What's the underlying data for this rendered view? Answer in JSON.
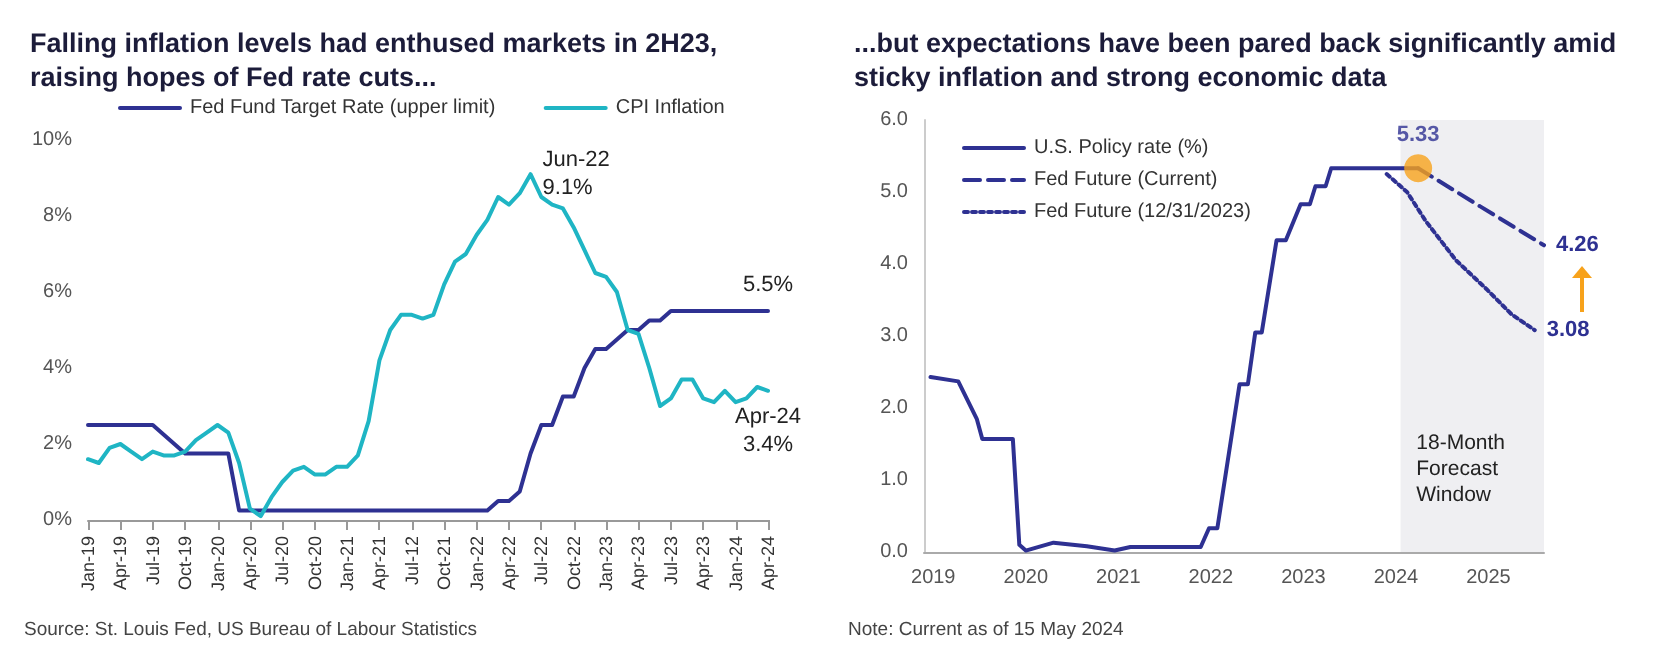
{
  "chart_data": [
    {
      "type": "line",
      "title": "Falling inflation levels had enthused markets in 2H23, raising hopes of Fed rate cuts...",
      "categories": [
        "Jan-19",
        null,
        null,
        "Apr-19",
        null,
        null,
        "Jul-19",
        null,
        null,
        "Oct-19",
        null,
        null,
        "Jan-20",
        null,
        null,
        "Apr-20",
        null,
        null,
        "Jul-20",
        null,
        null,
        "Oct-20",
        null,
        null,
        "Jan-21",
        null,
        null,
        "Apr-21",
        null,
        null,
        "Jul-12",
        null,
        null,
        "Oct-21",
        null,
        null,
        "Jan-22",
        null,
        null,
        "Apr-22",
        null,
        null,
        "Jul-22",
        null,
        null,
        "Oct-22",
        null,
        null,
        "Jan-23",
        null,
        null,
        "Apr-23",
        null,
        null,
        "Jul-23",
        null,
        null,
        "Apr-23",
        null,
        null,
        "Jan-24",
        null,
        null,
        "Apr-24"
      ],
      "series": [
        {
          "name": "Fed Fund Target Rate (upper limit)",
          "color": "#2e3192",
          "values": [
            2.5,
            2.5,
            2.5,
            2.5,
            2.5,
            2.5,
            2.5,
            2.25,
            2.0,
            1.75,
            1.75,
            1.75,
            1.75,
            1.75,
            0.25,
            0.25,
            0.25,
            0.25,
            0.25,
            0.25,
            0.25,
            0.25,
            0.25,
            0.25,
            0.25,
            0.25,
            0.25,
            0.25,
            0.25,
            0.25,
            0.25,
            0.25,
            0.25,
            0.25,
            0.25,
            0.25,
            0.25,
            0.25,
            0.5,
            0.5,
            0.75,
            1.75,
            2.5,
            2.5,
            3.25,
            3.25,
            4.0,
            4.5,
            4.5,
            4.75,
            5.0,
            5.0,
            5.25,
            5.25,
            5.5,
            5.5,
            5.5,
            5.5,
            5.5,
            5.5,
            5.5,
            5.5,
            5.5,
            5.5
          ],
          "value_labels": [
            null,
            null,
            null,
            null,
            null,
            null,
            null,
            null,
            null,
            null,
            null,
            null,
            null,
            null,
            null,
            null,
            null,
            null,
            null,
            null,
            null,
            null,
            null,
            null,
            null,
            null,
            null,
            null,
            null,
            null,
            null,
            null,
            null,
            null,
            null,
            null,
            null,
            null,
            null,
            null,
            null,
            null,
            null,
            null,
            null,
            null,
            null,
            null,
            null,
            null,
            null,
            null,
            null,
            null,
            null,
            null,
            null,
            null,
            null,
            null,
            null,
            null,
            null,
            "5.5%"
          ]
        },
        {
          "name": "CPI Inflation",
          "color": "#1fb5c4",
          "values": [
            1.6,
            1.5,
            1.9,
            2.0,
            1.8,
            1.6,
            1.8,
            1.7,
            1.7,
            1.8,
            2.1,
            2.3,
            2.5,
            2.3,
            1.5,
            0.3,
            0.1,
            0.6,
            1.0,
            1.3,
            1.4,
            1.2,
            1.2,
            1.4,
            1.4,
            1.7,
            2.6,
            4.2,
            5.0,
            5.4,
            5.4,
            5.3,
            5.4,
            6.2,
            6.8,
            7.0,
            7.5,
            7.9,
            8.5,
            8.3,
            8.6,
            9.1,
            8.5,
            8.3,
            8.2,
            7.7,
            7.1,
            6.5,
            6.4,
            6.0,
            5.0,
            4.9,
            4.0,
            3.0,
            3.2,
            3.7,
            3.7,
            3.2,
            3.1,
            3.4,
            3.1,
            3.2,
            3.5,
            3.4
          ],
          "value_labels": [
            null,
            null,
            null,
            null,
            null,
            null,
            null,
            null,
            null,
            null,
            null,
            null,
            null,
            null,
            null,
            null,
            null,
            null,
            null,
            null,
            null,
            null,
            null,
            null,
            null,
            null,
            null,
            null,
            null,
            null,
            null,
            null,
            null,
            null,
            null,
            null,
            null,
            null,
            null,
            null,
            null,
            "Jun-22\n9.1%",
            null,
            null,
            null,
            null,
            null,
            null,
            null,
            null,
            null,
            null,
            null,
            null,
            null,
            null,
            null,
            null,
            null,
            null,
            null,
            null,
            null,
            "Apr-24\n3.4%"
          ]
        }
      ],
      "ylim": [
        0,
        10
      ],
      "yticks": [
        {
          "value": 0,
          "label": "0%"
        },
        {
          "value": 2,
          "label": "2%"
        },
        {
          "value": 4,
          "label": "4%"
        },
        {
          "value": 6,
          "label": "6%"
        },
        {
          "value": 8,
          "label": "8%"
        },
        {
          "value": 10,
          "label": "10%"
        }
      ],
      "grid": false,
      "legend": "top",
      "marker": "none",
      "line_style": "solid",
      "annotations": [
        "Source: St. Louis Fed, US Bureau of Labour Statistics"
      ]
    },
    {
      "type": "line",
      "title": "...but expectations have been pared back significantly amid sticky inflation and strong economic data",
      "series": [
        {
          "name": "U.S. Policy rate (%)",
          "color": "#2e3192",
          "line_style": "solid",
          "x": [
            2018.97,
            2019.27,
            2019.47,
            2019.53,
            2019.86,
            2019.93,
            2020.0,
            2020.3,
            2020.66,
            2020.96,
            2021.13,
            2021.89,
            2021.98,
            2022.07,
            2022.31,
            2022.4,
            2022.48,
            2022.55,
            2022.71,
            2022.81,
            2022.97,
            2023.07,
            2023.13,
            2023.24,
            2023.3,
            2024.24
          ],
          "values": [
            2.43,
            2.37,
            1.85,
            1.57,
            1.57,
            0.1,
            0.02,
            0.13,
            0.08,
            0.02,
            0.07,
            0.07,
            0.33,
            0.33,
            2.33,
            2.33,
            3.05,
            3.05,
            4.33,
            4.33,
            4.83,
            4.83,
            5.08,
            5.08,
            5.33,
            5.33
          ]
        },
        {
          "name": "Fed Future (Current)",
          "color": "#2e3192",
          "line_style": "dashed",
          "x": [
            2024.24,
            2024.91,
            2025.6
          ],
          "values": [
            5.33,
            4.8,
            4.26
          ],
          "value_labels": [
            null,
            null,
            "4.26"
          ]
        },
        {
          "name": "Fed Future (12/31/2023)",
          "color": "#2e3192",
          "line_style": "dotted",
          "x": [
            2023.9,
            2024.12,
            2024.32,
            2024.65,
            2024.98,
            2025.25,
            2025.5
          ],
          "values": [
            5.25,
            5.0,
            4.6,
            4.05,
            3.65,
            3.3,
            3.08
          ],
          "value_labels": [
            null,
            null,
            null,
            null,
            null,
            null,
            "3.08"
          ]
        },
        {
          "type": "scatter",
          "color": "#f7a21b",
          "marker": "circle",
          "x": [
            2024.24
          ],
          "values": [
            5.33
          ],
          "value_labels": [
            "5.33"
          ]
        }
      ],
      "xlim": [
        2018.9,
        2025.6
      ],
      "xticks": [
        2019,
        2020,
        2021,
        2022,
        2023,
        2024,
        2025
      ],
      "ylim": [
        0,
        6
      ],
      "yticks": [
        {
          "value": 0,
          "label": "0.0"
        },
        {
          "value": 1,
          "label": "1.0"
        },
        {
          "value": 2,
          "label": "2.0"
        },
        {
          "value": 3,
          "label": "3.0"
        },
        {
          "value": 4,
          "label": "4.0"
        },
        {
          "value": 5,
          "label": "5.0"
        },
        {
          "value": 6,
          "label": "6.0"
        }
      ],
      "bands": [
        {
          "axis": "x",
          "from": 2024.05,
          "to": 2025.6,
          "label": "18-Month\nForecast\nWindow",
          "color": "#efeff2"
        }
      ],
      "grid": false,
      "legend": "top left",
      "marker": "none",
      "annotations": [
        "Note: Current as of 15 May 2024"
      ]
    }
  ]
}
